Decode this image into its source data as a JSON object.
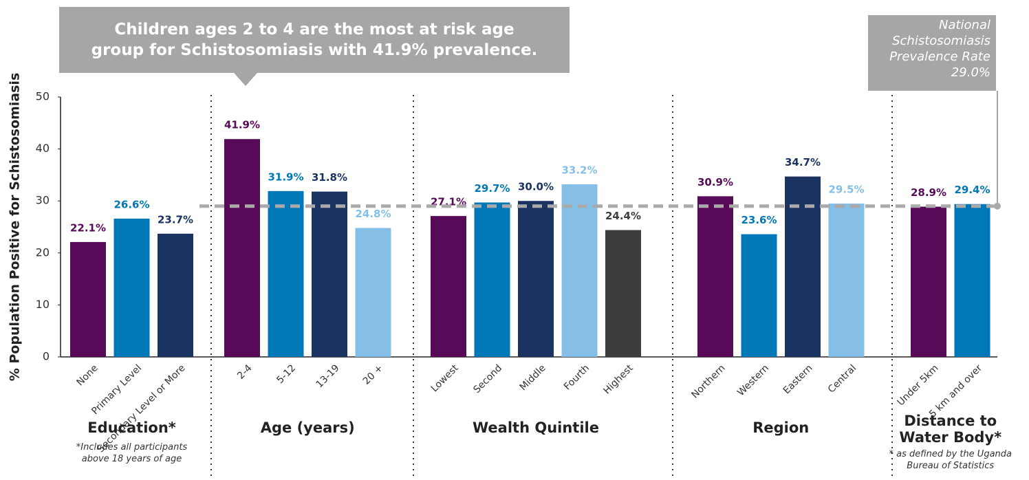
{
  "chart_data": {
    "type": "bar",
    "title": "Children ages 2 to 4 are the most at risk age group for Schistosomiasis with 41.9% prevalence.",
    "ylabel": "% Population Positive for Schistosomiasis",
    "ylim": [
      0,
      50
    ],
    "yticks": [
      0,
      10,
      20,
      30,
      40,
      50
    ],
    "reference": {
      "label": "National Schistosomiasis Prevalence Rate",
      "value": 29.0,
      "value_label": "29.0%",
      "color": "#aaaaaa"
    },
    "groups": [
      {
        "name": "Education*",
        "note": "*Includes all participants above 18 years of age",
        "categories": [
          "None",
          "Primary Level",
          "Secondary Level or More"
        ],
        "values": [
          22.1,
          26.6,
          23.7
        ],
        "value_labels": [
          "22.1%",
          "26.6%",
          "23.7%"
        ],
        "colors": [
          "#560a57",
          "#0077b6",
          "#1b3361"
        ]
      },
      {
        "name": "Age (years)",
        "categories": [
          "2-4",
          "5-12",
          "13-19",
          "20 +"
        ],
        "values": [
          41.9,
          31.9,
          31.8,
          24.8
        ],
        "value_labels": [
          "41.9%",
          "31.9%",
          "31.8%",
          "24.8%"
        ],
        "colors": [
          "#560a57",
          "#0077b6",
          "#1b3361",
          "#85bfe8"
        ]
      },
      {
        "name": "Wealth Quintile",
        "categories": [
          "Lowest",
          "Second",
          "Middle",
          "Fourth",
          "Highest"
        ],
        "values": [
          27.1,
          29.7,
          30.0,
          33.2,
          24.4
        ],
        "value_labels": [
          "27.1%",
          "29.7%",
          "30.0%",
          "33.2%",
          "24.4%"
        ],
        "colors": [
          "#560a57",
          "#0077b6",
          "#1b3361",
          "#85bfe8",
          "#3d3d3d"
        ]
      },
      {
        "name": "Region",
        "categories": [
          "Northern",
          "Western",
          "Eastern",
          "Central"
        ],
        "values": [
          30.9,
          23.6,
          34.7,
          29.5
        ],
        "value_labels": [
          "30.9%",
          "23.6%",
          "34.7%",
          "29.5%"
        ],
        "colors": [
          "#560a57",
          "#0077b6",
          "#1b3361",
          "#85bfe8"
        ]
      },
      {
        "name": "Distance to Water Body*",
        "note": "* as defined by the Uganda Bureau of Statistics",
        "categories": [
          "Under 5km",
          "5 km and over"
        ],
        "values": [
          28.9,
          29.4
        ],
        "value_labels": [
          "28.9%",
          "29.4%"
        ],
        "colors": [
          "#560a57",
          "#0077b6"
        ]
      }
    ]
  }
}
